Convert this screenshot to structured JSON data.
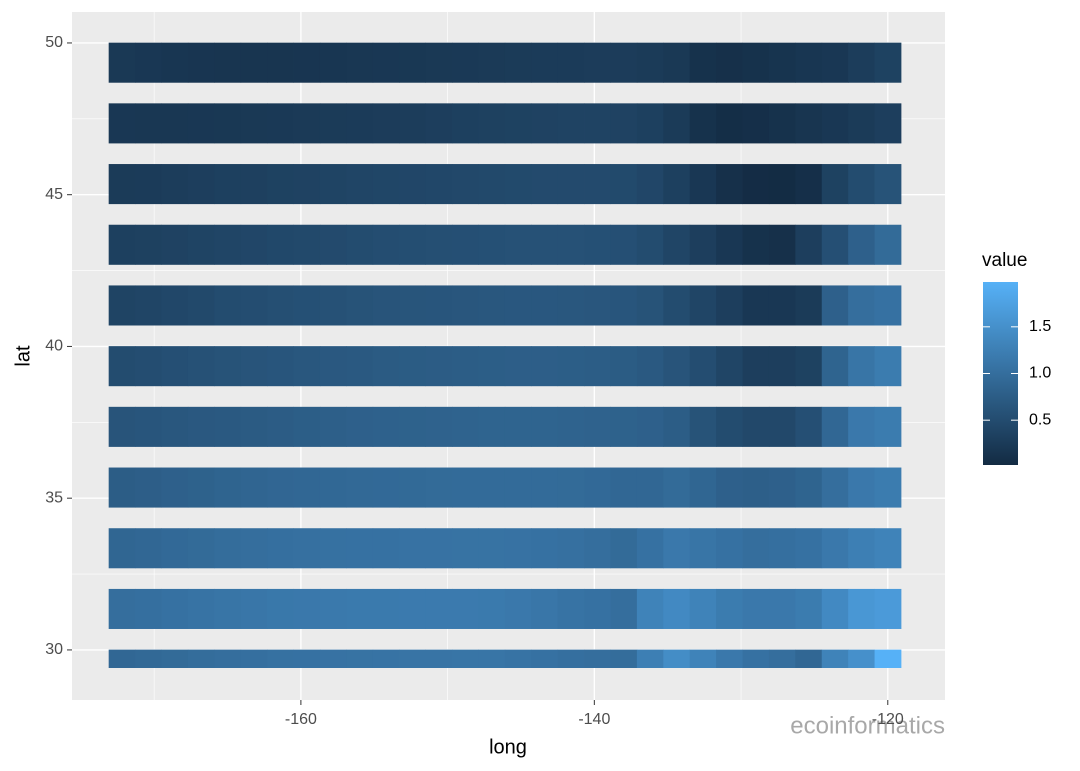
{
  "chart_data": {
    "type": "heatmap",
    "x_label": "long",
    "y_label": "lat",
    "x": [
      -172.2,
      -170.4,
      -168.6,
      -166.8,
      -165.0,
      -163.2,
      -161.4,
      -159.6,
      -157.8,
      -156.0,
      -154.2,
      -152.4,
      -150.6,
      -148.8,
      -147.0,
      -145.2,
      -143.4,
      -141.6,
      -139.8,
      -138.0,
      -136.2,
      -134.4,
      -132.6,
      -130.8,
      -129.0,
      -127.2,
      -125.4,
      -123.6,
      -121.8,
      -120.0
    ],
    "y": [
      49.35,
      47.35,
      45.35,
      43.35,
      41.35,
      39.35,
      37.35,
      35.35,
      33.35,
      31.35,
      29.35
    ],
    "values": [
      [
        0.22,
        0.2,
        0.18,
        0.17,
        0.16,
        0.16,
        0.16,
        0.17,
        0.18,
        0.19,
        0.2,
        0.21,
        0.22,
        0.23,
        0.24,
        0.25,
        0.26,
        0.26,
        0.27,
        0.27,
        0.25,
        0.22,
        0.12,
        0.1,
        0.12,
        0.15,
        0.18,
        0.2,
        0.28,
        0.35
      ],
      [
        0.2,
        0.19,
        0.19,
        0.2,
        0.21,
        0.22,
        0.23,
        0.24,
        0.25,
        0.26,
        0.27,
        0.28,
        0.3,
        0.32,
        0.34,
        0.35,
        0.36,
        0.37,
        0.37,
        0.36,
        0.32,
        0.25,
        0.12,
        0.06,
        0.08,
        0.12,
        0.16,
        0.2,
        0.25,
        0.3
      ],
      [
        0.25,
        0.26,
        0.28,
        0.3,
        0.32,
        0.33,
        0.35,
        0.36,
        0.38,
        0.4,
        0.41,
        0.42,
        0.43,
        0.45,
        0.46,
        0.47,
        0.48,
        0.48,
        0.48,
        0.47,
        0.42,
        0.32,
        0.2,
        0.1,
        0.04,
        0.03,
        0.08,
        0.35,
        0.5,
        0.6
      ],
      [
        0.32,
        0.34,
        0.36,
        0.38,
        0.4,
        0.42,
        0.44,
        0.46,
        0.48,
        0.5,
        0.52,
        0.53,
        0.54,
        0.55,
        0.56,
        0.57,
        0.57,
        0.57,
        0.56,
        0.55,
        0.5,
        0.4,
        0.3,
        0.2,
        0.12,
        0.1,
        0.3,
        0.55,
        0.8,
        0.95
      ],
      [
        0.38,
        0.4,
        0.43,
        0.46,
        0.5,
        0.52,
        0.54,
        0.56,
        0.58,
        0.6,
        0.62,
        0.63,
        0.64,
        0.65,
        0.66,
        0.67,
        0.67,
        0.66,
        0.65,
        0.64,
        0.6,
        0.5,
        0.4,
        0.3,
        0.2,
        0.2,
        0.25,
        0.8,
        1.0,
        1.05
      ],
      [
        0.5,
        0.52,
        0.55,
        0.58,
        0.6,
        0.62,
        0.64,
        0.66,
        0.68,
        0.7,
        0.72,
        0.73,
        0.74,
        0.75,
        0.76,
        0.77,
        0.77,
        0.76,
        0.75,
        0.73,
        0.7,
        0.62,
        0.52,
        0.4,
        0.3,
        0.3,
        0.35,
        0.85,
        1.1,
        1.2
      ],
      [
        0.62,
        0.64,
        0.66,
        0.68,
        0.7,
        0.72,
        0.74,
        0.76,
        0.78,
        0.8,
        0.81,
        0.82,
        0.83,
        0.84,
        0.85,
        0.85,
        0.85,
        0.84,
        0.83,
        0.82,
        0.8,
        0.75,
        0.6,
        0.5,
        0.45,
        0.45,
        0.55,
        0.9,
        1.15,
        1.2
      ],
      [
        0.75,
        0.77,
        0.8,
        0.82,
        0.85,
        0.87,
        0.89,
        0.9,
        0.91,
        0.92,
        0.93,
        0.94,
        0.95,
        0.96,
        0.96,
        0.96,
        0.96,
        0.95,
        0.93,
        0.9,
        0.9,
        0.95,
        0.88,
        0.8,
        0.78,
        0.8,
        0.85,
        1.0,
        1.15,
        1.2
      ],
      [
        0.88,
        0.9,
        0.93,
        0.95,
        0.98,
        1.0,
        1.02,
        1.03,
        1.04,
        1.05,
        1.05,
        1.06,
        1.06,
        1.07,
        1.07,
        1.06,
        1.05,
        1.03,
        1.0,
        0.95,
        1.05,
        1.15,
        1.1,
        1.05,
        1.0,
        1.02,
        1.05,
        1.15,
        1.25,
        1.3
      ],
      [
        1.0,
        1.02,
        1.05,
        1.08,
        1.1,
        1.12,
        1.14,
        1.15,
        1.16,
        1.17,
        1.17,
        1.18,
        1.18,
        1.18,
        1.17,
        1.15,
        1.12,
        1.08,
        1.05,
        1.0,
        1.3,
        1.4,
        1.3,
        1.2,
        1.15,
        1.15,
        1.2,
        1.4,
        1.6,
        1.65
      ],
      [
        0.9,
        0.92,
        0.95,
        0.98,
        1.0,
        1.02,
        1.04,
        1.05,
        1.06,
        1.07,
        1.08,
        1.09,
        1.09,
        1.1,
        1.1,
        1.08,
        1.05,
        1.02,
        1.0,
        0.98,
        1.25,
        1.45,
        1.3,
        1.15,
        1.05,
        1.0,
        0.9,
        1.3,
        1.5,
        1.98
      ]
    ],
    "xlim": [
      -175.6,
      -116.1
    ],
    "ylim": [
      28.35,
      51.02
    ],
    "xticks": [
      -160,
      -140,
      -120
    ],
    "yticks": [
      30,
      35,
      40,
      45,
      50
    ],
    "x_minor_grid": [
      -170,
      -150,
      -130
    ],
    "y_minor_grid": [
      32.5,
      37.5,
      42.5,
      47.5
    ],
    "legend_title": "value",
    "color_low": "#132B43",
    "color_high": "#56B1F7",
    "color_lim": [
      0.02,
      1.98
    ],
    "color_ticks": [
      0.5,
      {
        "value": 1.0,
        "label": "1.0"
      },
      1.5
    ],
    "watermark": "ecoinformatics"
  }
}
